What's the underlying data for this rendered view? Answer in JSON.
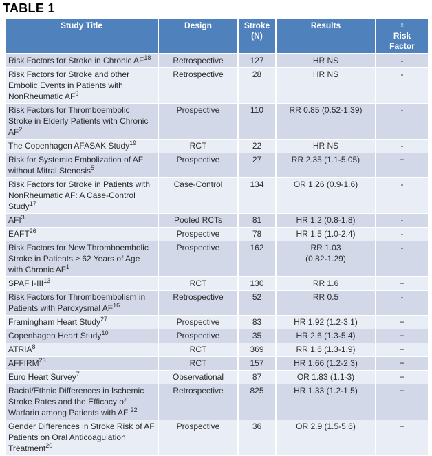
{
  "page": {
    "title": "TABLE 1"
  },
  "table": {
    "columns": [
      {
        "id": "study",
        "label": "Study Title"
      },
      {
        "id": "design",
        "label": "Design"
      },
      {
        "id": "n",
        "label": "Stroke\n(N)"
      },
      {
        "id": "results",
        "label": "Results"
      },
      {
        "id": "risk",
        "label": "♀\nRisk\nFactor"
      }
    ],
    "rows": [
      {
        "study": "Risk Factors for Stroke in Chronic AF",
        "ref": "18",
        "design": "Retrospective",
        "n": "127",
        "results": "HR NS",
        "risk": "-"
      },
      {
        "study": "Risk Factors for Stroke and other Embolic Events in Patients with NonRheumatic AF",
        "ref": "9",
        "design": "Retrospective",
        "n": "28",
        "results": "HR NS",
        "risk": "-"
      },
      {
        "study": "Risk Factors for Thromboembolic Stroke in Elderly Patients with Chronic AF",
        "ref": "2",
        "design": "Prospective",
        "n": "110",
        "results": "RR 0.85 (0.52-1.39)",
        "risk": "-"
      },
      {
        "study": "The Copenhagen AFASAK Study",
        "ref": "19",
        "design": "RCT",
        "n": "22",
        "results": "HR NS",
        "risk": "-"
      },
      {
        "study": "Risk for Systemic Embolization of AF without Mitral Stenosis",
        "ref": "5",
        "design": "Prospective",
        "n": "27",
        "results": "RR 2.35 (1.1-5.05)",
        "risk": "+"
      },
      {
        "study": "Risk Factors for Stroke in Patients with NonRheumatic AF: A Case-Control Study",
        "ref": "17",
        "design": "Case-Control",
        "n": "134",
        "results": "OR 1.26 (0.9-1.6)",
        "risk": "-"
      },
      {
        "study": "AFI",
        "ref": "3",
        "design": "Pooled RCTs",
        "n": "81",
        "results": "HR 1.2 (0.8-1.8)",
        "risk": "-"
      },
      {
        "study": "EAFT",
        "ref": "26",
        "design": "Prospective",
        "n": "78",
        "results": "HR 1.5 (1.0-2.4)",
        "risk": "-"
      },
      {
        "study": "Risk Factors for New Thromboembolic Stroke in Patients ≥ 62 Years of Age with Chronic AF",
        "ref": "1",
        "design": "Prospective",
        "n": "162",
        "results": "RR 1.03\n(0.82-1.29)",
        "risk": "-"
      },
      {
        "study": "SPAF I-III",
        "ref": "13",
        "design": "RCT",
        "n": "130",
        "results": "RR 1.6",
        "risk": "+"
      },
      {
        "study": "Risk Factors for Thromboembolism in Patients with Paroxysmal AF",
        "ref": "16",
        "design": "Retrospective",
        "n": "52",
        "results": "RR  0.5",
        "risk": "-"
      },
      {
        "study": "Framingham Heart Study",
        "ref": "27",
        "design": "Prospective",
        "n": "83",
        "results": "HR 1.92 (1.2-3.1)",
        "risk": "+"
      },
      {
        "study": "Copenhagen Heart Study",
        "ref": "10",
        "design": "Prospective",
        "n": "35",
        "results": "HR 2.6 (1.3-5.4)",
        "risk": "+"
      },
      {
        "study": "ATRIA",
        "ref": "8",
        "design": "RCT",
        "n": "369",
        "results": "RR 1.6 (1.3-1.9)",
        "risk": "+"
      },
      {
        "study": "AFFIRM",
        "ref": "23",
        "design": "RCT",
        "n": "157",
        "results": "HR 1.66 (1.2-2.3)",
        "risk": "+"
      },
      {
        "study": "Euro Heart Survey",
        "ref": "7",
        "design": "Observational",
        "n": "87",
        "results": "OR 1.83 (1.1-3)",
        "risk": "+"
      },
      {
        "study": "Racial/Ethnic Differences in Ischemic Stroke Rates and the Efficacy of Warfarin among Patients with AF ",
        "ref": "22",
        "design": "Retrospective",
        "n": "825",
        "results": "HR 1.33 (1.2-1.5)",
        "risk": "+"
      },
      {
        "study": "Gender Differences in Stroke Risk of AF Patients on Oral Anticoagulation Treatment",
        "ref": "20",
        "design": "Prospective",
        "n": "36",
        "results": "OR 2.9 (1.5-5.6)",
        "risk": "+"
      }
    ],
    "colors": {
      "header_bg": "#4f81bd",
      "header_text": "#ffffff",
      "band_dark": "#d2d8e8",
      "band_light": "#e9edf5",
      "body_text": "#2d2d2d"
    }
  }
}
